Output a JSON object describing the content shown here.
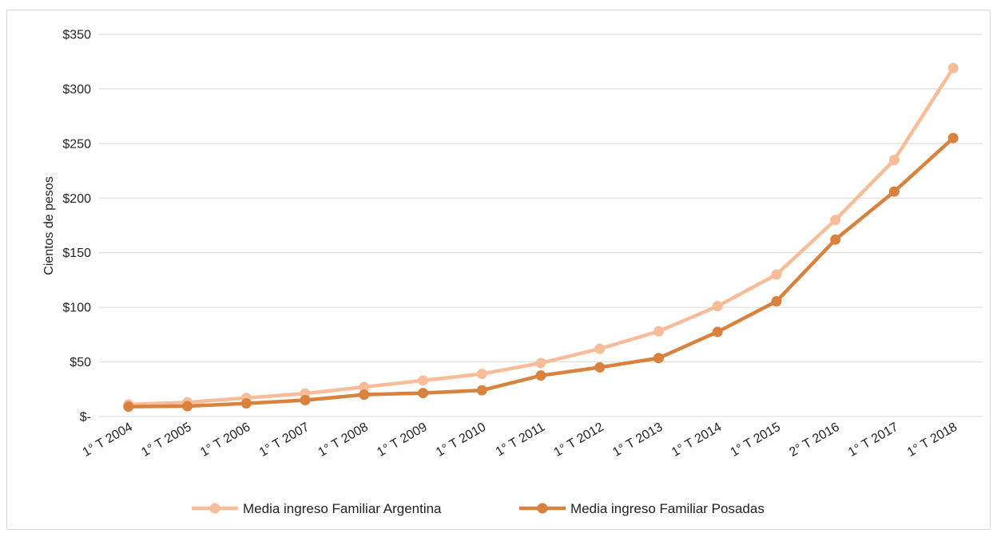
{
  "chart_data": {
    "type": "line",
    "title": "",
    "xlabel": "",
    "ylabel": "Cientos de pesos",
    "ylim": [
      0,
      350
    ],
    "yticks": [
      0,
      50,
      100,
      150,
      200,
      250,
      300,
      350
    ],
    "ytick_labels": [
      "$-",
      "$50",
      "$100",
      "$150",
      "$200",
      "$250",
      "$300",
      "$350"
    ],
    "grid": "horizontal",
    "legend_position": "bottom",
    "categories": [
      "1° T 2004",
      "1° T 2005",
      "1° T 2006",
      "1° T 2007",
      "1° T 2008",
      "1° T 2009",
      "1° T 2010",
      "1° T 2011",
      "1° T 2012",
      "1° T 2013",
      "1° T 2014",
      "1° T 2015",
      "2° T 2016",
      "1° T 2017",
      "1° T 2018"
    ],
    "series": [
      {
        "name": "Media ingreso Familiar Argentina",
        "color": "#f8bd98",
        "values": [
          11,
          13,
          17,
          21,
          27,
          33,
          39,
          49,
          62,
          78,
          101,
          130,
          180,
          235,
          319
        ]
      },
      {
        "name": "Media ingreso Familiar Posadas",
        "color": "#d9823e",
        "values": [
          9,
          9.5,
          12,
          15,
          20,
          21.5,
          24,
          37.5,
          45,
          53.5,
          77.5,
          105.5,
          162,
          206,
          255
        ]
      }
    ]
  }
}
